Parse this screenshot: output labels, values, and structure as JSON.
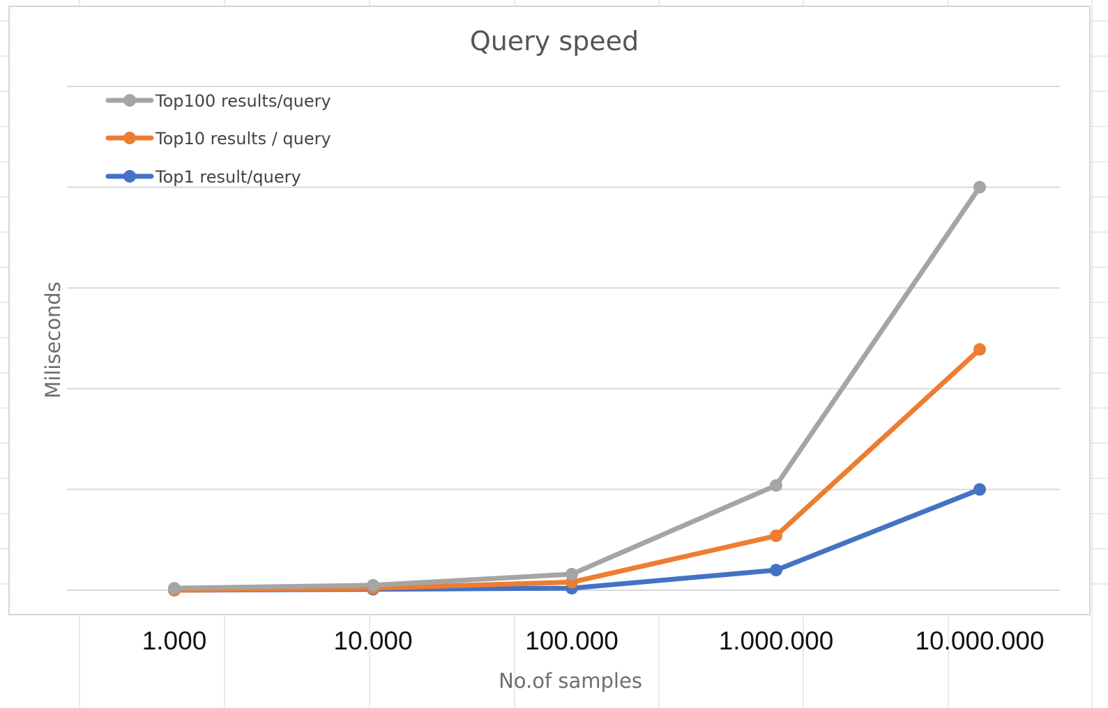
{
  "chart_data": {
    "type": "line",
    "title": "Query speed",
    "xlabel": "No.of samples",
    "ylabel": "Miliseconds",
    "x_scale": "log",
    "categories": [
      "1.000",
      "10.000",
      "100.000",
      "1.000.000",
      "10.000.000"
    ],
    "ylim": [
      0,
      5
    ],
    "grid": true,
    "legend_position": "top-left",
    "series": [
      {
        "name": "Top100 results/query",
        "color": "#a5a5a5",
        "values": [
          0.02,
          0.05,
          0.16,
          1.04,
          4.0
        ]
      },
      {
        "name": "Top10 results / query",
        "color": "#ed7d31",
        "values": [
          0.0,
          0.02,
          0.08,
          0.54,
          2.39
        ]
      },
      {
        "name": "Top1 result/query",
        "color": "#4472c4",
        "values": [
          0.0,
          0.01,
          0.02,
          0.2,
          1.0
        ]
      }
    ]
  }
}
